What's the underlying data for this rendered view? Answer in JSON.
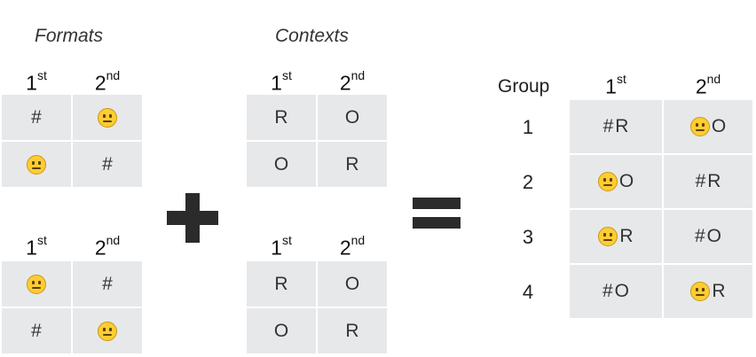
{
  "headings": {
    "formats": "Formats",
    "contexts": "Contexts"
  },
  "col_headers": {
    "first": "1",
    "first_sup": "st",
    "second": "2",
    "second_sup": "nd"
  },
  "formats_top": [
    [
      "#",
      "neutral-face-icon"
    ],
    [
      "neutral-face-icon",
      "#"
    ]
  ],
  "formats_bottom": [
    [
      "neutral-face-icon",
      "#"
    ],
    [
      "#",
      "neutral-face-icon"
    ]
  ],
  "contexts_top": [
    [
      "R",
      "O"
    ],
    [
      "O",
      "R"
    ]
  ],
  "contexts_bottom": [
    [
      "R",
      "O"
    ],
    [
      "O",
      "R"
    ]
  ],
  "operators": {
    "plus": "plus-icon",
    "equals": "equals-icon"
  },
  "result": {
    "group_label": "Group",
    "rows": [
      {
        "group": "1",
        "first_format": "#",
        "first_context": "R",
        "second_format": "neutral-face-icon",
        "second_context": "O"
      },
      {
        "group": "2",
        "first_format": "neutral-face-icon",
        "first_context": "O",
        "second_format": "#",
        "second_context": "R"
      },
      {
        "group": "3",
        "first_format": "neutral-face-icon",
        "first_context": "R",
        "second_format": "#",
        "second_context": "O"
      },
      {
        "group": "4",
        "first_format": "#",
        "first_context": "O",
        "second_format": "neutral-face-icon",
        "second_context": "R"
      }
    ]
  },
  "colors": {
    "cell_bg": "#e7e8ea",
    "emoji_fill": "#ffcc33",
    "operator": "#2b2b2b"
  }
}
